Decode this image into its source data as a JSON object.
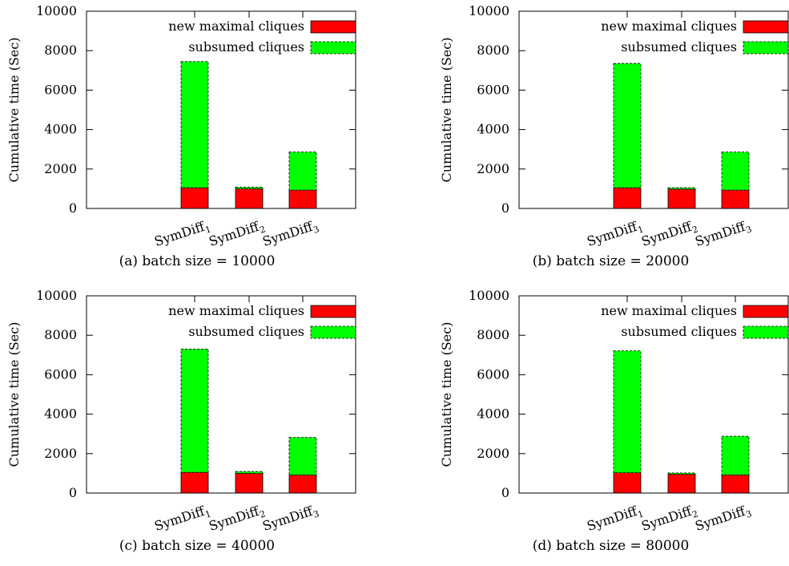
{
  "colors": {
    "new": "#ff0000",
    "subsumed": "#00ff00"
  },
  "legend": {
    "new_label": "new maximal cliques",
    "subsumed_label": "subsumed cliques"
  },
  "ylabel": "Cumulative time (Sec)",
  "yticks": [
    "0",
    "2000",
    "4000",
    "6000",
    "8000",
    "10000"
  ],
  "ylim": [
    0,
    10000
  ],
  "categories": [
    {
      "base": "SymDiff",
      "sub": "1"
    },
    {
      "base": "SymDiff",
      "sub": "2"
    },
    {
      "base": "SymDiff",
      "sub": "3"
    }
  ],
  "panels": [
    {
      "caption": "(a) batch size = 10000",
      "chart_data": {
        "type": "bar",
        "stacked": true,
        "series": [
          {
            "name": "new maximal cliques",
            "values": [
              1050,
              1000,
              930
            ]
          },
          {
            "name": "subsumed cliques",
            "values": [
              6400,
              80,
              1930
            ]
          }
        ]
      }
    },
    {
      "caption": "(b) batch size = 20000",
      "chart_data": {
        "type": "bar",
        "stacked": true,
        "series": [
          {
            "name": "new maximal cliques",
            "values": [
              1050,
              980,
              930
            ]
          },
          {
            "name": "subsumed cliques",
            "values": [
              6300,
              70,
              1930
            ]
          }
        ]
      }
    },
    {
      "caption": "(c) batch size = 40000",
      "chart_data": {
        "type": "bar",
        "stacked": true,
        "series": [
          {
            "name": "new maximal cliques",
            "values": [
              1050,
              1000,
              920
            ]
          },
          {
            "name": "subsumed cliques",
            "values": [
              6250,
              90,
              1900
            ]
          }
        ]
      }
    },
    {
      "caption": "(d) batch size = 80000",
      "chart_data": {
        "type": "bar",
        "stacked": true,
        "series": [
          {
            "name": "new maximal cliques",
            "values": [
              1030,
              960,
              920
            ]
          },
          {
            "name": "subsumed cliques",
            "values": [
              6180,
              60,
              1960
            ]
          }
        ]
      }
    }
  ]
}
